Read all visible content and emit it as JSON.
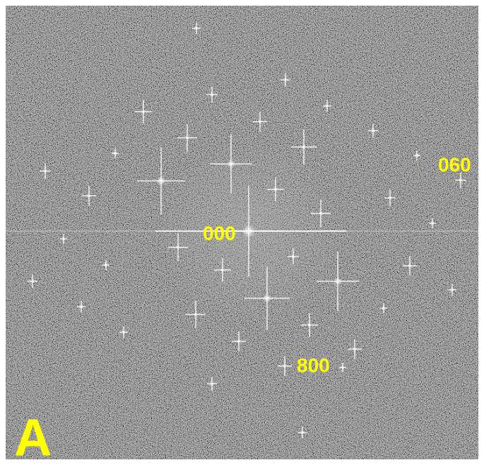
{
  "labels": {
    "spot_060": "060",
    "spot_000": "000",
    "spot_800": "800",
    "panel": "A"
  }
}
